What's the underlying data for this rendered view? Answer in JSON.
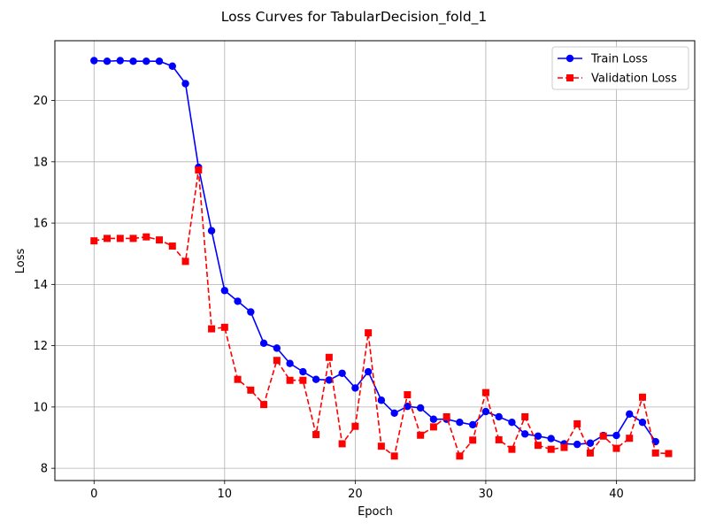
{
  "chart_data": {
    "type": "line",
    "title": "Loss Curves for TabularDecision_fold_1",
    "xlabel": "Epoch",
    "ylabel": "Loss",
    "xlim": [
      -3,
      46
    ],
    "ylim": [
      7.6,
      21.95
    ],
    "xticks": [
      0,
      10,
      20,
      30,
      40
    ],
    "yticks": [
      8,
      10,
      12,
      14,
      16,
      18,
      20
    ],
    "grid": true,
    "legend_position": "top-right",
    "series": [
      {
        "name": "Train Loss",
        "color": "#0000ff",
        "line_style": "solid",
        "marker": "circle",
        "x": [
          0,
          1,
          2,
          3,
          4,
          5,
          6,
          7,
          8,
          9,
          10,
          11,
          12,
          13,
          14,
          15,
          16,
          17,
          18,
          19,
          20,
          21,
          22,
          23,
          24,
          25,
          26,
          27,
          28,
          29,
          30,
          31,
          32,
          33,
          34,
          35,
          36,
          37,
          38,
          39,
          40,
          41,
          42,
          43
        ],
        "values": [
          21.3,
          21.28,
          21.3,
          21.28,
          21.28,
          21.28,
          21.12,
          20.55,
          17.82,
          15.75,
          13.8,
          13.45,
          13.1,
          12.08,
          11.92,
          11.42,
          11.15,
          10.9,
          10.88,
          11.1,
          10.62,
          11.15,
          10.22,
          9.8,
          10.02,
          9.97,
          9.6,
          9.6,
          9.5,
          9.42,
          9.85,
          9.68,
          9.5,
          9.12,
          9.05,
          8.97,
          8.8,
          8.78,
          8.82,
          9.07,
          9.07,
          9.77,
          9.5,
          8.87
        ]
      },
      {
        "name": "Validation Loss",
        "color": "#ff0000",
        "line_style": "dashed",
        "marker": "square",
        "x": [
          0,
          1,
          2,
          3,
          4,
          5,
          6,
          7,
          8,
          9,
          10,
          11,
          12,
          13,
          14,
          15,
          16,
          17,
          18,
          19,
          20,
          21,
          22,
          23,
          24,
          25,
          26,
          27,
          28,
          29,
          30,
          31,
          32,
          33,
          34,
          35,
          36,
          37,
          38,
          39,
          40,
          41,
          42,
          43,
          44
        ],
        "values": [
          15.42,
          15.5,
          15.5,
          15.5,
          15.55,
          15.45,
          15.25,
          14.75,
          17.73,
          12.55,
          12.6,
          10.9,
          10.55,
          10.08,
          11.52,
          10.87,
          10.87,
          9.1,
          11.62,
          8.8,
          9.37,
          12.42,
          8.72,
          8.4,
          10.4,
          9.08,
          9.35,
          9.68,
          8.4,
          8.92,
          10.47,
          8.93,
          8.62,
          9.68,
          8.75,
          8.62,
          8.68,
          9.45,
          8.5,
          9.05,
          8.65,
          8.98,
          10.32,
          8.5,
          8.48
        ]
      }
    ]
  }
}
